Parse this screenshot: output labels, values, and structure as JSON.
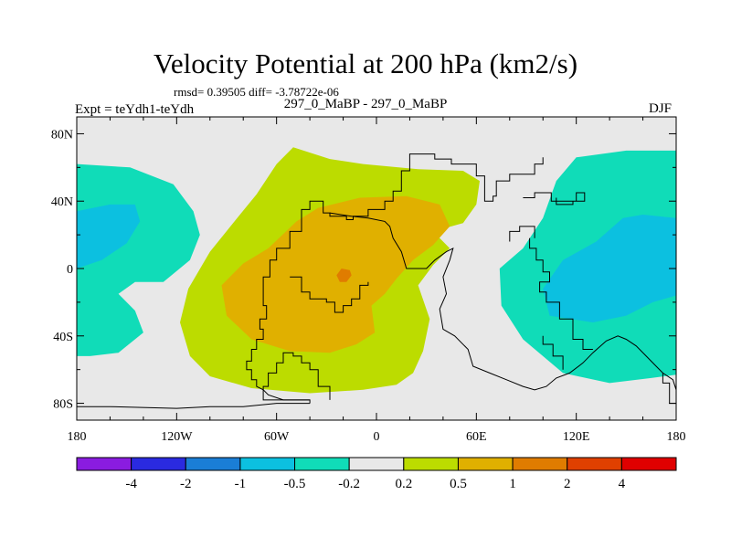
{
  "header": {
    "title": "Velocity Potential at 200 hPa (km2/s)",
    "stats": "rmsd= 0.39505 diff= -3.78722e-06",
    "expt": "Expt = teYdh1-teYdh",
    "subtitle": "297_0_MaBP - 297_0_MaBP",
    "season": "DJF"
  },
  "colors": {
    "background": "#e8e8e8",
    "frame": "#000000",
    "coast": "#000000"
  },
  "chart_data": {
    "type": "heatmap",
    "title": "Velocity Potential at 200 hPa (km2/s)",
    "xlabel": "",
    "ylabel": "",
    "xlim": [
      -180,
      180
    ],
    "ylim": [
      -90,
      90
    ],
    "x_ticks": [
      {
        "value": -180,
        "label": "180"
      },
      {
        "value": -120,
        "label": "120W"
      },
      {
        "value": -60,
        "label": "60W"
      },
      {
        "value": 0,
        "label": "0"
      },
      {
        "value": 60,
        "label": "60E"
      },
      {
        "value": 120,
        "label": "120E"
      },
      {
        "value": 180,
        "label": "180"
      }
    ],
    "y_ticks": [
      {
        "value": 80,
        "label": "80N"
      },
      {
        "value": 40,
        "label": "40N"
      },
      {
        "value": 0,
        "label": "0"
      },
      {
        "value": -40,
        "label": "40S"
      },
      {
        "value": -80,
        "label": "80S"
      }
    ],
    "levels": [
      -4,
      -2,
      -1,
      -0.5,
      -0.2,
      0.2,
      0.5,
      1,
      2,
      4
    ],
    "level_labels": [
      "-4",
      "-2",
      "-1",
      "-0.5",
      "-0.2",
      "0.2",
      "0.5",
      "1",
      "2",
      "4"
    ],
    "colorbar_colors": [
      "#8a1ce0",
      "#2a2ae0",
      "#1a7ed6",
      "#0cc0e0",
      "#10dcb8",
      "#e8e8e8",
      "#bcdc00",
      "#e0b000",
      "#e07c00",
      "#e04000",
      "#e00000"
    ],
    "regions": [
      {
        "name": "positive-outer",
        "level": "0.2 to 0.5",
        "color": "#bcdc00",
        "polygon": [
          [
            -50,
            72
          ],
          [
            -28,
            65
          ],
          [
            -8,
            62
          ],
          [
            25,
            59
          ],
          [
            52,
            58
          ],
          [
            62,
            52
          ],
          [
            60,
            38
          ],
          [
            52,
            27
          ],
          [
            34,
            22
          ],
          [
            44,
            12
          ],
          [
            34,
            2
          ],
          [
            25,
            -10
          ],
          [
            32,
            -30
          ],
          [
            28,
            -49
          ],
          [
            22,
            -62
          ],
          [
            12,
            -69
          ],
          [
            -8,
            -72
          ],
          [
            -40,
            -74
          ],
          [
            -75,
            -71
          ],
          [
            -100,
            -64
          ],
          [
            -112,
            -52
          ],
          [
            -118,
            -32
          ],
          [
            -113,
            -12
          ],
          [
            -100,
            10
          ],
          [
            -82,
            32
          ],
          [
            -72,
            44
          ],
          [
            -60,
            62
          ]
        ]
      },
      {
        "name": "positive-mid",
        "level": "0.5 to 1",
        "color": "#e0b000",
        "polygon": [
          [
            -35,
            36
          ],
          [
            -10,
            42
          ],
          [
            18,
            43
          ],
          [
            38,
            38
          ],
          [
            44,
            25
          ],
          [
            34,
            14
          ],
          [
            22,
            5
          ],
          [
            12,
            -6
          ],
          [
            5,
            -15
          ],
          [
            -3,
            -22
          ],
          [
            -1,
            -38
          ],
          [
            -12,
            -45
          ],
          [
            -28,
            -50
          ],
          [
            -52,
            -49
          ],
          [
            -75,
            -42
          ],
          [
            -90,
            -28
          ],
          [
            -93,
            -10
          ],
          [
            -80,
            3
          ],
          [
            -65,
            12
          ],
          [
            -48,
            28
          ]
        ]
      },
      {
        "name": "positive-core",
        "level": "1 to 2",
        "color": "#e07c00",
        "polygon": [
          [
            -21,
            0
          ],
          [
            -16,
            -1
          ],
          [
            -15,
            -4
          ],
          [
            -18,
            -8
          ],
          [
            -22,
            -8
          ],
          [
            -24,
            -4
          ]
        ]
      },
      {
        "name": "negative-west-outer",
        "level": "-0.5 to -0.2",
        "color": "#10dcb8",
        "polygon": [
          [
            -180,
            62
          ],
          [
            -148,
            60
          ],
          [
            -122,
            50
          ],
          [
            -110,
            34
          ],
          [
            -106,
            20
          ],
          [
            -112,
            5
          ],
          [
            -128,
            -8
          ],
          [
            -145,
            -8
          ],
          [
            -155,
            -15
          ],
          [
            -145,
            -25
          ],
          [
            -140,
            -38
          ],
          [
            -155,
            -50
          ],
          [
            -172,
            -52
          ],
          [
            -180,
            -52
          ]
        ]
      },
      {
        "name": "negative-west-inner",
        "level": "-1 to -0.5",
        "color": "#0cc0e0",
        "polygon": [
          [
            -180,
            34
          ],
          [
            -160,
            38
          ],
          [
            -145,
            38
          ],
          [
            -142,
            28
          ],
          [
            -150,
            15
          ],
          [
            -165,
            5
          ],
          [
            -180,
            0
          ]
        ]
      },
      {
        "name": "negative-east-outer",
        "level": "-0.5 to -0.2",
        "color": "#10dcb8",
        "polygon": [
          [
            180,
            70
          ],
          [
            150,
            70
          ],
          [
            120,
            66
          ],
          [
            108,
            52
          ],
          [
            100,
            30
          ],
          [
            88,
            12
          ],
          [
            74,
            0
          ],
          [
            75,
            -22
          ],
          [
            88,
            -42
          ],
          [
            112,
            -62
          ],
          [
            140,
            -68
          ],
          [
            165,
            -65
          ],
          [
            180,
            -63
          ]
        ]
      },
      {
        "name": "negative-east-inner",
        "level": "-1 to -0.5",
        "color": "#0cc0e0",
        "polygon": [
          [
            180,
            30
          ],
          [
            160,
            32
          ],
          [
            148,
            30
          ],
          [
            132,
            16
          ],
          [
            112,
            5
          ],
          [
            100,
            -12
          ],
          [
            104,
            -28
          ],
          [
            130,
            -32
          ],
          [
            150,
            -28
          ],
          [
            166,
            -20
          ],
          [
            180,
            -16
          ]
        ]
      }
    ],
    "coastlines": [
      [
        [
          -40,
          -80
        ],
        [
          -40,
          -78
        ],
        [
          -56,
          -78
        ],
        [
          -65,
          -75
        ],
        [
          -68,
          -72
        ],
        [
          -72,
          -70
        ],
        [
          -72,
          -66
        ],
        [
          -75,
          -66
        ],
        [
          -75,
          -60
        ],
        [
          -78,
          -60
        ],
        [
          -78,
          -55
        ],
        [
          -75,
          -55
        ],
        [
          -75,
          -48
        ],
        [
          -72,
          -48
        ],
        [
          -72,
          -42
        ],
        [
          -68,
          -42
        ],
        [
          -68,
          -36
        ],
        [
          -70,
          -36
        ],
        [
          -70,
          -30
        ],
        [
          -66,
          -30
        ],
        [
          -66,
          -22
        ],
        [
          -68,
          -22
        ],
        [
          -68,
          -5
        ],
        [
          -64,
          -5
        ],
        [
          -64,
          5
        ],
        [
          -60,
          5
        ],
        [
          -60,
          12
        ],
        [
          -52,
          12
        ],
        [
          -52,
          22
        ],
        [
          -45,
          22
        ],
        [
          -45,
          35
        ],
        [
          -40,
          35
        ],
        [
          -40,
          40
        ],
        [
          -32,
          40
        ],
        [
          -32,
          33
        ],
        [
          -28,
          33
        ],
        [
          -28,
          31
        ],
        [
          -18,
          31
        ],
        [
          -18,
          29
        ],
        [
          -14,
          29
        ],
        [
          -14,
          31
        ],
        [
          -5,
          31
        ],
        [
          -5,
          35
        ],
        [
          5,
          35
        ],
        [
          5,
          40
        ],
        [
          10,
          40
        ],
        [
          10,
          46
        ],
        [
          15,
          46
        ],
        [
          15,
          58
        ],
        [
          20,
          58
        ],
        [
          20,
          68
        ],
        [
          35,
          68
        ],
        [
          35,
          65
        ],
        [
          45,
          65
        ],
        [
          45,
          62
        ],
        [
          60,
          62
        ],
        [
          60,
          55
        ],
        [
          65,
          55
        ],
        [
          65,
          40
        ],
        [
          70,
          40
        ],
        [
          70,
          43
        ],
        [
          72,
          43
        ],
        [
          72,
          52
        ],
        [
          80,
          52
        ],
        [
          80,
          56
        ],
        [
          95,
          56
        ],
        [
          95,
          62
        ],
        [
          100,
          62
        ],
        [
          100,
          66
        ]
      ],
      [
        [
          -28,
          33
        ],
        [
          -15,
          31
        ],
        [
          -5,
          30
        ],
        [
          5,
          28
        ],
        [
          8,
          25
        ],
        [
          10,
          18
        ],
        [
          15,
          10
        ],
        [
          18,
          0
        ],
        [
          30,
          0
        ],
        [
          35,
          5
        ],
        [
          42,
          10
        ],
        [
          46,
          12
        ],
        [
          44,
          5
        ],
        [
          40,
          -5
        ],
        [
          42,
          -15
        ],
        [
          38,
          -24
        ],
        [
          40,
          -36
        ],
        [
          47,
          -40
        ],
        [
          55,
          -48
        ],
        [
          58,
          -58
        ],
        [
          68,
          -62
        ],
        [
          78,
          -66
        ],
        [
          88,
          -70
        ],
        [
          95,
          -72
        ],
        [
          102,
          -70
        ],
        [
          108,
          -65
        ],
        [
          116,
          -62
        ],
        [
          124,
          -56
        ],
        [
          130,
          -50
        ],
        [
          138,
          -43
        ],
        [
          145,
          -40
        ],
        [
          150,
          -42
        ],
        [
          156,
          -46
        ],
        [
          162,
          -52
        ],
        [
          168,
          -58
        ],
        [
          172,
          -62
        ],
        [
          178,
          -66
        ],
        [
          180,
          -72
        ]
      ],
      [
        [
          -5,
          -8
        ],
        [
          -5,
          -10
        ],
        [
          -10,
          -10
        ],
        [
          -10,
          -18
        ],
        [
          -15,
          -18
        ],
        [
          -15,
          -22
        ],
        [
          -20,
          -22
        ],
        [
          -20,
          -26
        ],
        [
          -25,
          -26
        ],
        [
          -25,
          -20
        ],
        [
          -30,
          -20
        ],
        [
          -30,
          -18
        ],
        [
          -40,
          -18
        ],
        [
          -40,
          -14
        ],
        [
          -45,
          -14
        ],
        [
          -45,
          -5
        ],
        [
          -52,
          -5
        ]
      ],
      [
        [
          -180,
          -82
        ],
        [
          -160,
          -82
        ],
        [
          -120,
          -83
        ],
        [
          -100,
          -82
        ],
        [
          -80,
          -82
        ],
        [
          -60,
          -80
        ],
        [
          -40,
          -80
        ]
      ],
      [
        [
          -28,
          -78
        ],
        [
          -28,
          -70
        ],
        [
          -35,
          -70
        ],
        [
          -35,
          -60
        ],
        [
          -40,
          -60
        ],
        [
          -40,
          -56
        ],
        [
          -45,
          -56
        ],
        [
          -45,
          -52
        ],
        [
          -50,
          -52
        ],
        [
          -50,
          -50
        ],
        [
          -56,
          -50
        ],
        [
          -56,
          -56
        ],
        [
          -60,
          -56
        ],
        [
          -60,
          -62
        ],
        [
          -65,
          -62
        ],
        [
          -65,
          -70
        ],
        [
          -68,
          -70
        ],
        [
          -68,
          -78
        ],
        [
          -56,
          -78
        ],
        [
          -40,
          -78
        ]
      ],
      [
        [
          92,
          18
        ],
        [
          92,
          12
        ],
        [
          96,
          12
        ],
        [
          96,
          5
        ],
        [
          100,
          5
        ],
        [
          100,
          -2
        ],
        [
          104,
          -2
        ],
        [
          104,
          -8
        ],
        [
          98,
          -8
        ],
        [
          98,
          -14
        ],
        [
          102,
          -14
        ],
        [
          102,
          -20
        ],
        [
          110,
          -20
        ],
        [
          110,
          -30
        ],
        [
          118,
          -30
        ],
        [
          118,
          -42
        ],
        [
          124,
          -42
        ],
        [
          124,
          -48
        ],
        [
          130,
          -48
        ]
      ],
      [
        [
          88,
          42
        ],
        [
          95,
          42
        ],
        [
          95,
          45
        ],
        [
          105,
          45
        ],
        [
          105,
          40
        ],
        [
          120,
          40
        ],
        [
          120,
          45
        ],
        [
          125,
          45
        ],
        [
          125,
          40
        ],
        [
          118,
          40
        ],
        [
          118,
          38
        ],
        [
          108,
          38
        ],
        [
          108,
          42
        ]
      ],
      [
        [
          80,
          16
        ],
        [
          80,
          22
        ],
        [
          86,
          22
        ],
        [
          86,
          25
        ],
        [
          95,
          25
        ],
        [
          95,
          18
        ]
      ],
      [
        [
          100,
          -40
        ],
        [
          100,
          -45
        ],
        [
          106,
          -45
        ],
        [
          106,
          -52
        ],
        [
          112,
          -52
        ],
        [
          112,
          -60
        ]
      ],
      [
        [
          172,
          -62
        ],
        [
          172,
          -68
        ],
        [
          176,
          -68
        ],
        [
          176,
          -80
        ],
        [
          180,
          -80
        ]
      ]
    ]
  }
}
